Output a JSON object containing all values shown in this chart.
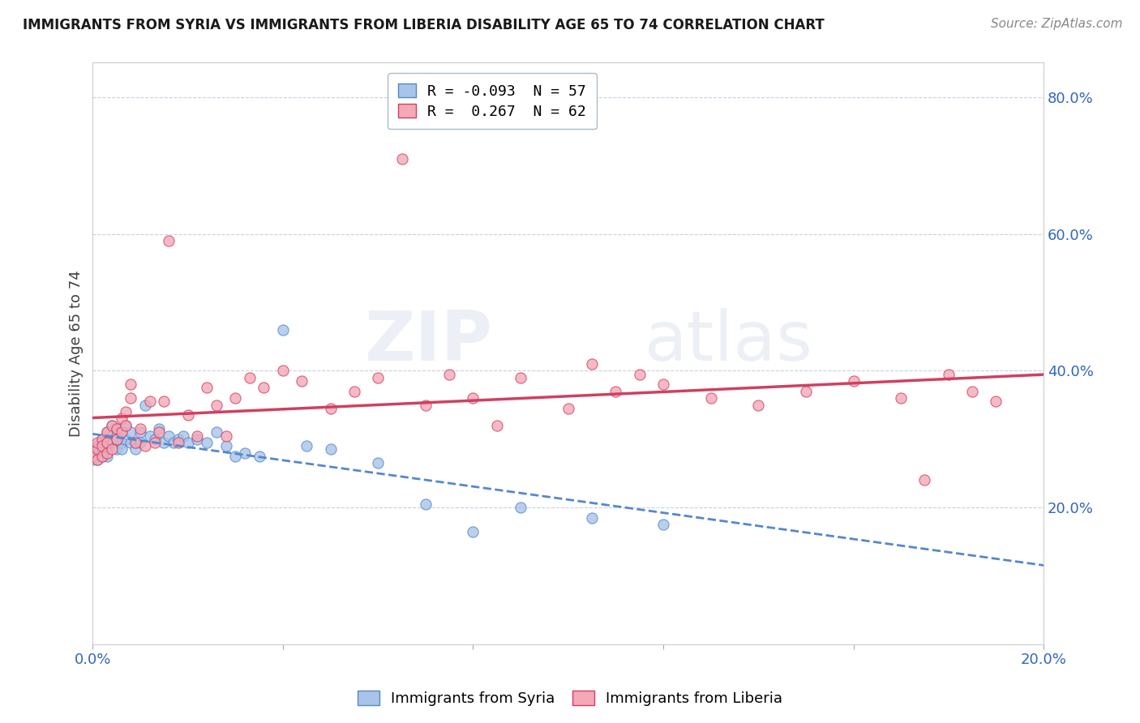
{
  "title": "IMMIGRANTS FROM SYRIA VS IMMIGRANTS FROM LIBERIA DISABILITY AGE 65 TO 74 CORRELATION CHART",
  "source": "Source: ZipAtlas.com",
  "ylabel": "Disability Age 65 to 74",
  "watermark": "ZIPatlas",
  "legend_syria": "R = -0.093  N = 57",
  "legend_liberia": "R =  0.267  N = 62",
  "syria_color": "#a8c4e8",
  "liberia_color": "#f4a8b8",
  "syria_line_color": "#5588cc",
  "liberia_line_color": "#d04060",
  "xlim": [
    0.0,
    0.2
  ],
  "ylim": [
    0.0,
    0.85
  ],
  "syria_x": [
    0.0,
    0.0,
    0.001,
    0.001,
    0.001,
    0.001,
    0.002,
    0.002,
    0.002,
    0.002,
    0.003,
    0.003,
    0.003,
    0.003,
    0.004,
    0.004,
    0.004,
    0.005,
    0.005,
    0.005,
    0.006,
    0.006,
    0.006,
    0.007,
    0.007,
    0.008,
    0.008,
    0.009,
    0.009,
    0.01,
    0.01,
    0.011,
    0.012,
    0.013,
    0.014,
    0.015,
    0.016,
    0.017,
    0.018,
    0.019,
    0.02,
    0.022,
    0.024,
    0.026,
    0.028,
    0.03,
    0.032,
    0.035,
    0.04,
    0.045,
    0.05,
    0.06,
    0.07,
    0.08,
    0.09,
    0.105,
    0.12
  ],
  "syria_y": [
    0.28,
    0.27,
    0.29,
    0.285,
    0.275,
    0.27,
    0.3,
    0.295,
    0.285,
    0.275,
    0.31,
    0.295,
    0.285,
    0.275,
    0.32,
    0.305,
    0.295,
    0.315,
    0.3,
    0.285,
    0.31,
    0.295,
    0.285,
    0.32,
    0.3,
    0.31,
    0.295,
    0.295,
    0.285,
    0.31,
    0.295,
    0.35,
    0.305,
    0.3,
    0.315,
    0.295,
    0.305,
    0.295,
    0.3,
    0.305,
    0.295,
    0.3,
    0.295,
    0.31,
    0.29,
    0.275,
    0.28,
    0.275,
    0.46,
    0.29,
    0.285,
    0.265,
    0.205,
    0.165,
    0.2,
    0.185,
    0.175
  ],
  "liberia_x": [
    0.0,
    0.001,
    0.001,
    0.001,
    0.002,
    0.002,
    0.002,
    0.003,
    0.003,
    0.003,
    0.004,
    0.004,
    0.005,
    0.005,
    0.006,
    0.006,
    0.007,
    0.007,
    0.008,
    0.008,
    0.009,
    0.01,
    0.011,
    0.012,
    0.013,
    0.014,
    0.015,
    0.016,
    0.018,
    0.02,
    0.022,
    0.024,
    0.026,
    0.028,
    0.03,
    0.033,
    0.036,
    0.04,
    0.044,
    0.05,
    0.055,
    0.06,
    0.065,
    0.07,
    0.075,
    0.08,
    0.085,
    0.09,
    0.1,
    0.105,
    0.11,
    0.115,
    0.12,
    0.13,
    0.14,
    0.15,
    0.16,
    0.17,
    0.175,
    0.18,
    0.185,
    0.19
  ],
  "liberia_y": [
    0.275,
    0.285,
    0.295,
    0.27,
    0.3,
    0.29,
    0.275,
    0.31,
    0.295,
    0.28,
    0.32,
    0.285,
    0.315,
    0.3,
    0.33,
    0.31,
    0.34,
    0.32,
    0.38,
    0.36,
    0.295,
    0.315,
    0.29,
    0.355,
    0.295,
    0.31,
    0.355,
    0.59,
    0.295,
    0.335,
    0.305,
    0.375,
    0.35,
    0.305,
    0.36,
    0.39,
    0.375,
    0.4,
    0.385,
    0.345,
    0.37,
    0.39,
    0.71,
    0.35,
    0.395,
    0.36,
    0.32,
    0.39,
    0.345,
    0.41,
    0.37,
    0.395,
    0.38,
    0.36,
    0.35,
    0.37,
    0.385,
    0.36,
    0.24,
    0.395,
    0.37,
    0.355
  ]
}
